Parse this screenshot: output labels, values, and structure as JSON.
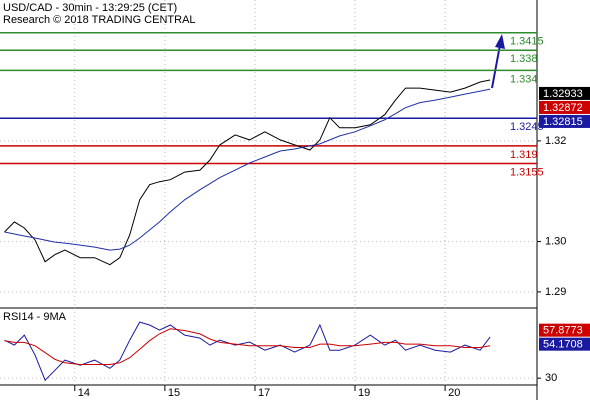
{
  "chart_data": [
    {
      "type": "line",
      "title": "USD/CAD - 30min - 13:29:25 (CET)",
      "subtitle": "Research © 2018 TRADING CENTRAL",
      "x": [
        -0.78,
        -0.67,
        -0.56,
        -0.44,
        -0.33,
        -0.22,
        -0.11,
        0.06,
        0.22,
        0.39,
        0.5,
        0.61,
        0.72,
        0.83,
        0.94,
        1.06,
        1.22,
        1.39,
        1.5,
        1.61,
        1.78,
        1.94,
        2.11,
        2.28,
        2.44,
        2.61,
        2.72,
        2.83,
        2.94,
        3.11,
        3.28,
        3.44,
        3.56,
        3.67,
        3.83,
        4,
        4.17,
        4.33,
        4.5,
        4.61
      ],
      "series": [
        {
          "color": "#000000",
          "values": [
            1.3019,
            1.3039,
            1.3027,
            1.3003,
            1.296,
            1.2974,
            1.2983,
            1.2968,
            1.2968,
            1.2954,
            1.2968,
            1.3013,
            1.3083,
            1.3113,
            1.3119,
            1.3123,
            1.3138,
            1.3142,
            1.3162,
            1.3192,
            1.3212,
            1.3202,
            1.3218,
            1.3202,
            1.3192,
            1.3182,
            1.3202,
            1.3246,
            1.3226,
            1.3226,
            1.3232,
            1.3252,
            1.3281,
            1.3305,
            1.3305,
            1.3301,
            1.3297,
            1.3305,
            1.3317,
            1.3321
          ]
        },
        {
          "color": "#1f2fa8",
          "values": [
            1.3019,
            1.3015,
            1.3011,
            1.3007,
            1.3003,
            1.2999,
            1.2997,
            1.2993,
            1.2989,
            1.2983,
            1.2985,
            1.2993,
            1.3007,
            1.3023,
            1.3039,
            1.3059,
            1.3083,
            1.3103,
            1.3115,
            1.3127,
            1.3142,
            1.3156,
            1.3168,
            1.318,
            1.3184,
            1.319,
            1.3194,
            1.3202,
            1.321,
            1.3218,
            1.323,
            1.3242,
            1.3254,
            1.3266,
            1.3276,
            1.3281,
            1.3287,
            1.3293,
            1.3299,
            1.3303
          ]
        }
      ],
      "levels": [
        {
          "value": 1.3415,
          "color": "#2e8b2e"
        },
        {
          "value": 1.338,
          "color": "#2e8b2e"
        },
        {
          "value": 1.334,
          "color": "#2e8b2e"
        },
        {
          "value": 1.3245,
          "color": "#1a1aa0"
        },
        {
          "value": 1.319,
          "color": "#cc0000"
        },
        {
          "value": 1.3155,
          "color": "#cc0000"
        }
      ],
      "markers": [
        {
          "value": 1.32933,
          "color": "#000000"
        },
        {
          "value": 1.32872,
          "color": "#cc0000"
        },
        {
          "value": 1.32815,
          "color": "#1a1aa0"
        }
      ],
      "ylim": [
        1.2868,
        1.3472
      ],
      "yticks": [
        1.29,
        {
          "value": 1.3,
          "label": "1.30"
        },
        1.32
      ],
      "xlim": [
        -0.83,
        5.13
      ],
      "xticks": [
        {
          "value": 0,
          "label": "14"
        },
        {
          "value": 1,
          "label": "15"
        },
        {
          "value": 2,
          "label": "17"
        },
        {
          "value": 3.11,
          "label": "19"
        },
        {
          "value": 4.11,
          "label": "20"
        }
      ],
      "grid": true
    },
    {
      "type": "line",
      "title": "RSI14 - 9MA",
      "series": [
        {
          "color": "#1a1aa0",
          "values": [
            52.3,
            49.4,
            55.3,
            43.5,
            28.8,
            34.7,
            40.6,
            37.6,
            40.6,
            35.8,
            40.6,
            52.3,
            62.9,
            61.2,
            58.2,
            61.2,
            55.3,
            53.5,
            49.4,
            52.3,
            49.4,
            51.2,
            46.4,
            49.4,
            45.3,
            49.4,
            61.2,
            46.4,
            46.4,
            49.4,
            55.3,
            49.4,
            52.3,
            46.4,
            49.4,
            46.4,
            45.3,
            49.4,
            46.4,
            54.2
          ]
        },
        {
          "color": "#cc0000",
          "values": [
            52,
            51,
            51,
            49,
            45,
            41,
            39,
            38,
            38,
            38,
            39,
            42,
            47,
            52,
            56,
            59,
            58,
            56,
            53,
            51,
            50,
            49,
            49,
            49,
            48,
            48,
            50,
            50,
            49,
            49,
            50,
            51,
            51,
            50,
            50,
            49,
            49,
            48,
            48,
            49
          ]
        }
      ],
      "markers": [
        {
          "value": 57.8773,
          "color": "#cc0000"
        },
        {
          "value": 54.1708,
          "color": "#1a1aa0"
        }
      ],
      "ylim": [
        26,
        70
      ],
      "yticks": [
        30
      ]
    }
  ]
}
